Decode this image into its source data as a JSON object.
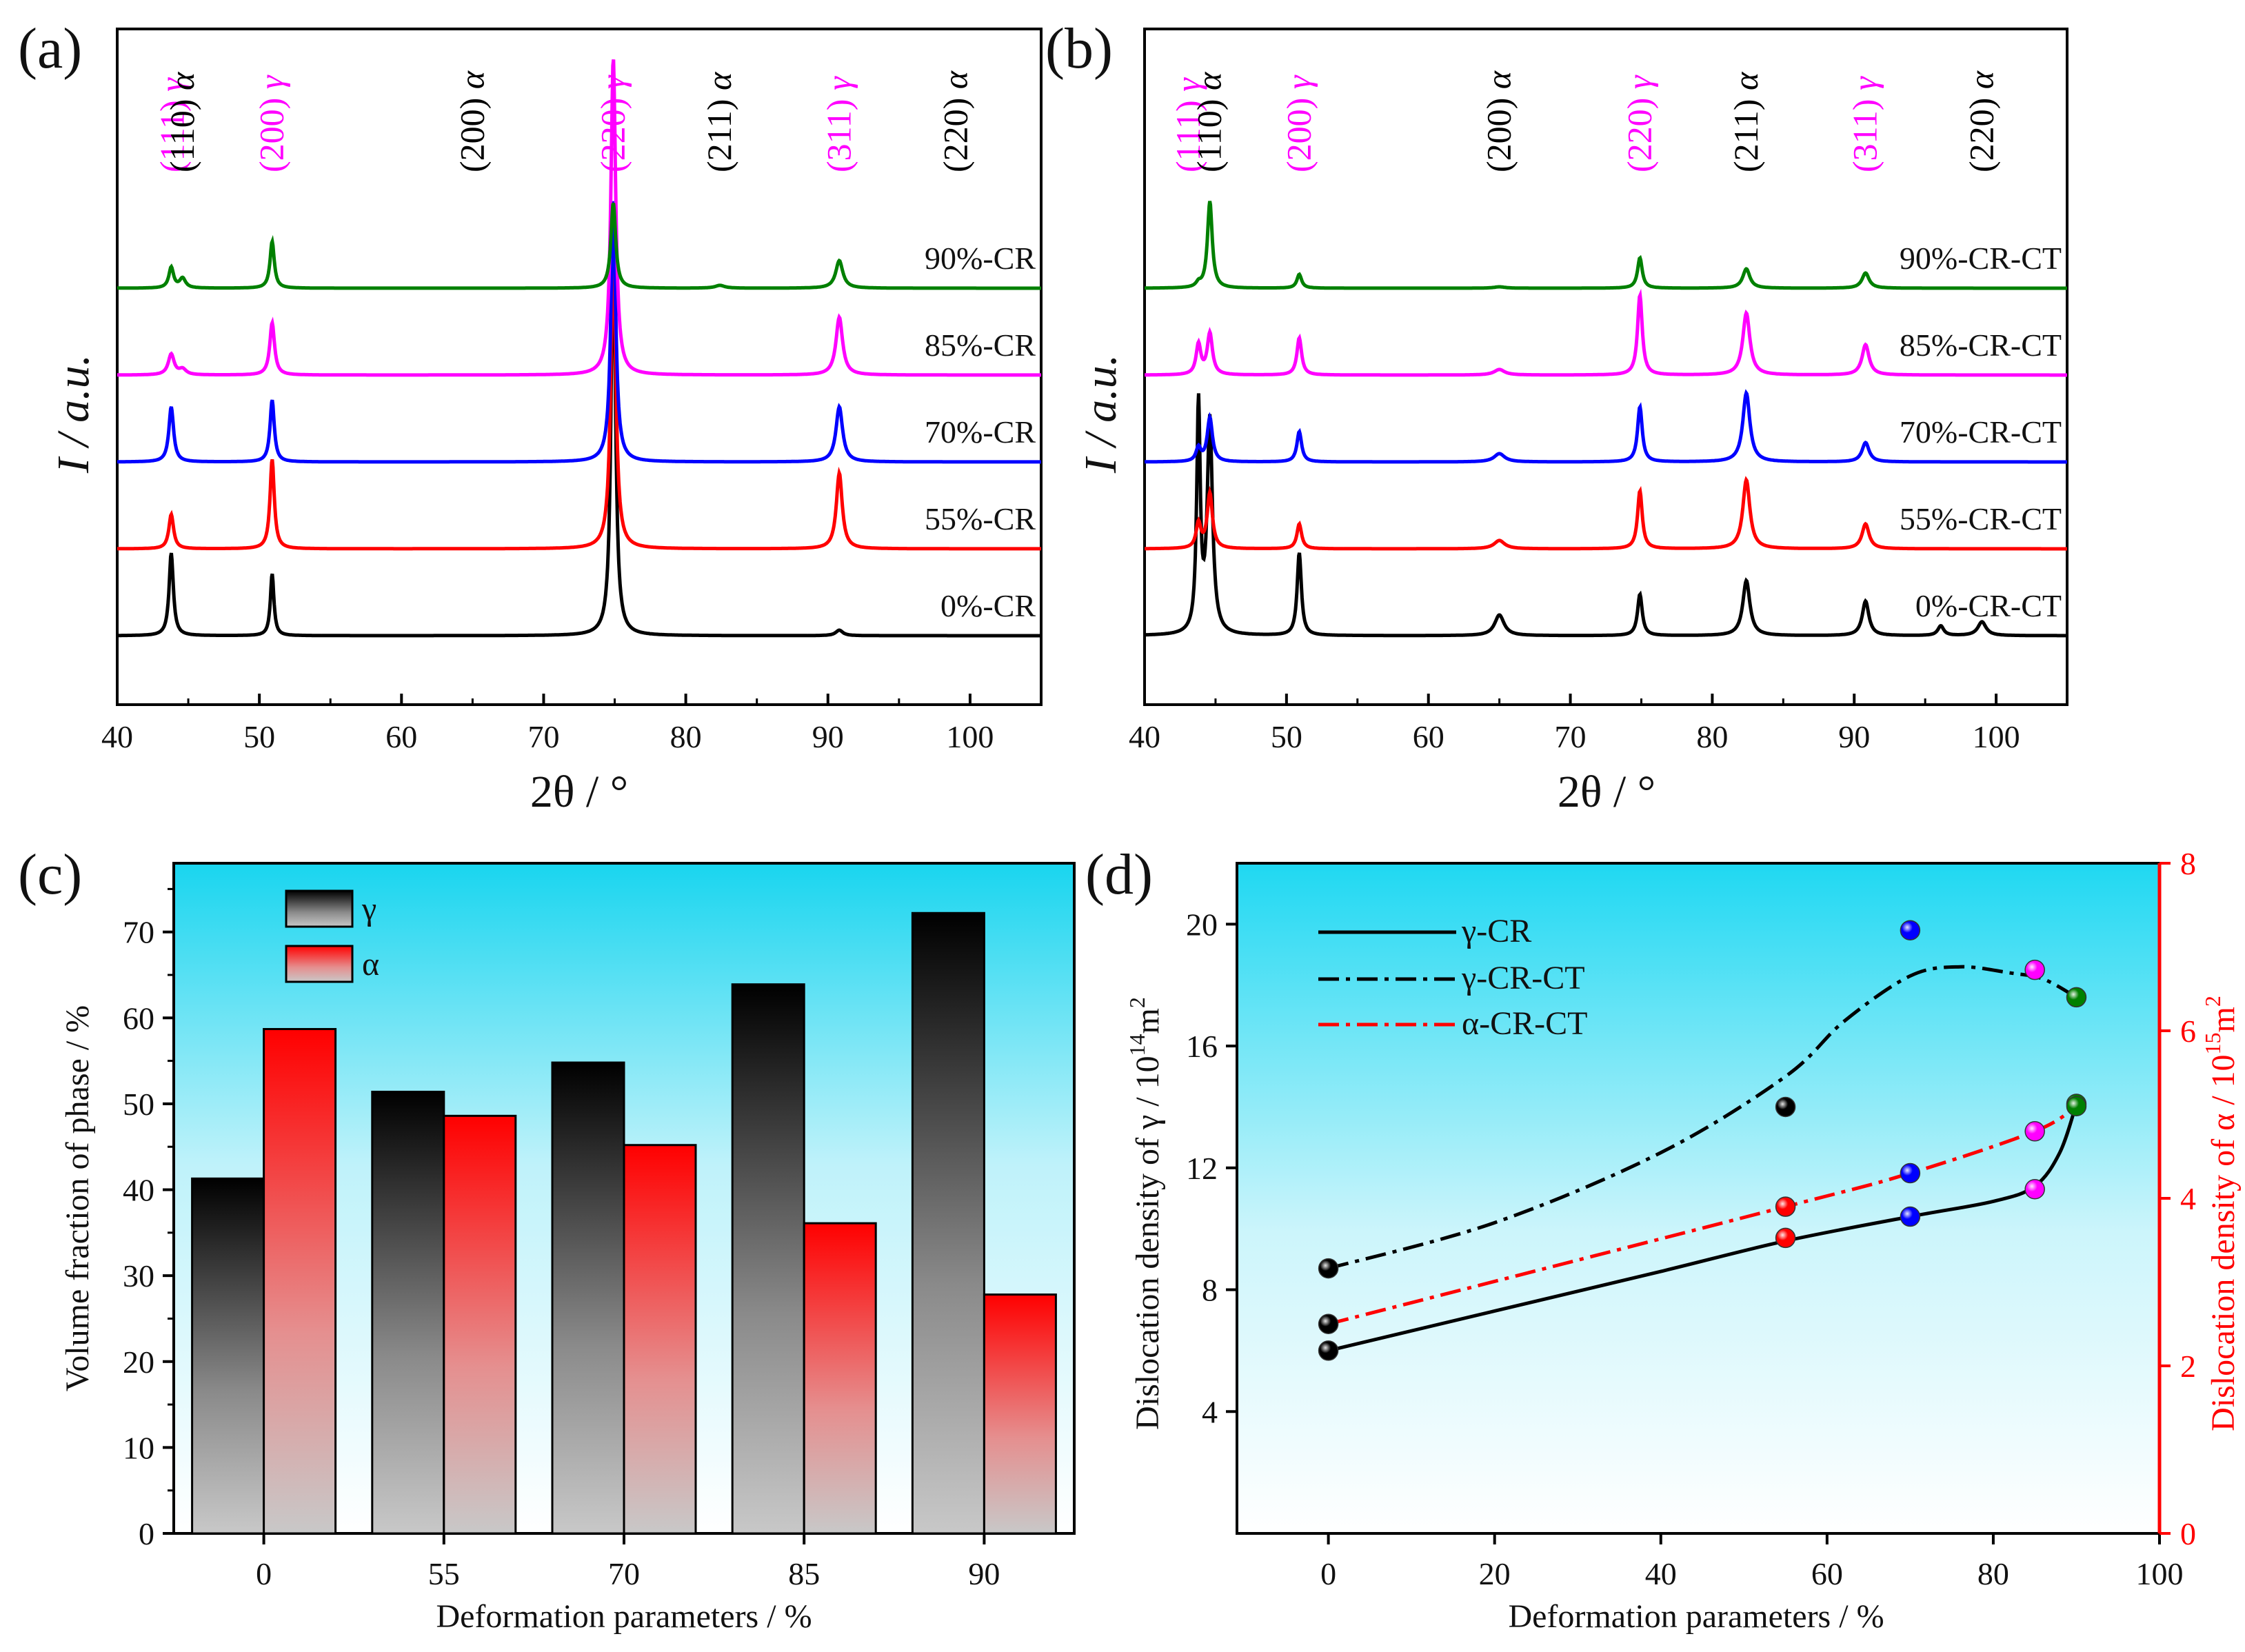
{
  "chart_data": [
    {
      "panel": "(a)",
      "type": "line",
      "xlabel": "2θ / °",
      "ylabel": "I / a.u.",
      "xlim": [
        40,
        105
      ],
      "xticks": [
        40,
        50,
        60,
        70,
        80,
        90,
        100
      ],
      "peak_labels": [
        {
          "hkl": "(111)",
          "phase": "γ",
          "x": 43.9,
          "color": "#ff00ff"
        },
        {
          "hkl": "(110)",
          "phase": "α",
          "x": 44.6,
          "color": "#000000"
        },
        {
          "hkl": "(200)",
          "phase": "γ",
          "x": 50.9,
          "color": "#ff00ff"
        },
        {
          "hkl": "(200)",
          "phase": "α",
          "x": 65.0,
          "color": "#000000"
        },
        {
          "hkl": "(220)",
          "phase": "γ",
          "x": 74.9,
          "color": "#ff00ff"
        },
        {
          "hkl": "(211)",
          "phase": "α",
          "x": 82.4,
          "color": "#000000"
        },
        {
          "hkl": "(311)",
          "phase": "γ",
          "x": 90.8,
          "color": "#ff00ff"
        },
        {
          "hkl": "(220)",
          "phase": "α",
          "x": 99.0,
          "color": "#000000"
        }
      ],
      "series": [
        {
          "name": "0%-CR",
          "color": "#000000",
          "offset": 0,
          "peaks": [
            [
              43.8,
              60,
              0.18
            ],
            [
              50.9,
              45,
              0.15
            ],
            [
              74.9,
              300,
              0.18
            ],
            [
              90.8,
              4,
              0.3
            ]
          ]
        },
        {
          "name": "55%-CR",
          "color": "#ff0000",
          "offset": 63,
          "peaks": [
            [
              43.8,
              25,
              0.2
            ],
            [
              50.9,
              65,
              0.18
            ],
            [
              74.9,
              230,
              0.2
            ],
            [
              90.8,
              55,
              0.25
            ]
          ]
        },
        {
          "name": "70%-CR",
          "color": "#0000ff",
          "offset": 126,
          "peaks": [
            [
              43.8,
              40,
              0.2
            ],
            [
              50.9,
              45,
              0.18
            ],
            [
              74.9,
              190,
              0.2
            ],
            [
              90.8,
              40,
              0.28
            ]
          ]
        },
        {
          "name": "85%-CR",
          "color": "#ff00ff",
          "offset": 189,
          "peaks": [
            [
              43.8,
              15,
              0.25
            ],
            [
              44.6,
              4,
              0.3
            ],
            [
              50.9,
              38,
              0.2
            ],
            [
              74.9,
              230,
              0.2
            ],
            [
              90.8,
              42,
              0.28
            ]
          ]
        },
        {
          "name": "90%-CR",
          "color": "#008000",
          "offset": 252,
          "peaks": [
            [
              43.8,
              15,
              0.2
            ],
            [
              44.6,
              7,
              0.25
            ],
            [
              50.9,
              34,
              0.18
            ],
            [
              74.9,
              62,
              0.2
            ],
            [
              82.4,
              2,
              0.4
            ],
            [
              90.8,
              20,
              0.3
            ]
          ]
        }
      ]
    },
    {
      "panel": "(b)",
      "type": "line",
      "xlabel": "2θ / °",
      "ylabel": "I / a.u.",
      "xlim": [
        40,
        105
      ],
      "xticks": [
        40,
        50,
        60,
        70,
        80,
        90,
        100
      ],
      "peak_labels": [
        {
          "hkl": "(111)",
          "phase": "γ",
          "x": 43.1,
          "color": "#ff00ff"
        },
        {
          "hkl": "(110)",
          "phase": "α",
          "x": 44.6,
          "color": "#000000"
        },
        {
          "hkl": "(200)",
          "phase": "γ",
          "x": 50.9,
          "color": "#ff00ff"
        },
        {
          "hkl": "(200)",
          "phase": "α",
          "x": 65.0,
          "color": "#000000"
        },
        {
          "hkl": "(220)",
          "phase": "γ",
          "x": 74.9,
          "color": "#ff00ff"
        },
        {
          "hkl": "(211)",
          "phase": "α",
          "x": 82.4,
          "color": "#000000"
        },
        {
          "hkl": "(311)",
          "phase": "γ",
          "x": 90.8,
          "color": "#ff00ff"
        },
        {
          "hkl": "(220)",
          "phase": "α",
          "x": 99.0,
          "color": "#000000"
        }
      ],
      "series": [
        {
          "name": "0%-CR-CT",
          "color": "#000000",
          "offset": 0,
          "peaks": [
            [
              43.8,
              165,
              0.15
            ],
            [
              44.6,
              155,
              0.22
            ],
            [
              50.9,
              60,
              0.18
            ],
            [
              65.0,
              15,
              0.4
            ],
            [
              74.9,
              30,
              0.2
            ],
            [
              82.4,
              40,
              0.3
            ],
            [
              90.8,
              25,
              0.28
            ],
            [
              96.1,
              7,
              0.25
            ],
            [
              99.0,
              10,
              0.35
            ]
          ]
        },
        {
          "name": "55%-CR-CT",
          "color": "#ff0000",
          "offset": 63,
          "peaks": [
            [
              43.8,
              18,
              0.2
            ],
            [
              44.6,
              40,
              0.22
            ],
            [
              50.9,
              18,
              0.2
            ],
            [
              65.0,
              6,
              0.45
            ],
            [
              74.9,
              42,
              0.2
            ],
            [
              82.4,
              50,
              0.3
            ],
            [
              90.8,
              18,
              0.3
            ]
          ]
        },
        {
          "name": "70%-CR-CT",
          "color": "#0000ff",
          "offset": 126,
          "peaks": [
            [
              43.8,
              10,
              0.2
            ],
            [
              44.6,
              32,
              0.22
            ],
            [
              50.9,
              22,
              0.2
            ],
            [
              65.0,
              6,
              0.45
            ],
            [
              74.9,
              40,
              0.2
            ],
            [
              82.4,
              50,
              0.3
            ],
            [
              90.8,
              14,
              0.3
            ]
          ]
        },
        {
          "name": "85%-CR-CT",
          "color": "#ff00ff",
          "offset": 189,
          "peaks": [
            [
              43.8,
              22,
              0.2
            ],
            [
              44.6,
              30,
              0.22
            ],
            [
              50.9,
              27,
              0.2
            ],
            [
              65.0,
              4,
              0.45
            ],
            [
              74.9,
              58,
              0.2
            ],
            [
              82.4,
              45,
              0.3
            ],
            [
              90.8,
              22,
              0.3
            ]
          ]
        },
        {
          "name": "90%-CR-CT",
          "color": "#008000",
          "offset": 252,
          "peaks": [
            [
              43.8,
              3,
              0.2
            ],
            [
              44.6,
              63,
              0.2
            ],
            [
              50.9,
              10,
              0.2
            ],
            [
              65.0,
              1,
              0.45
            ],
            [
              74.9,
              22,
              0.2
            ],
            [
              82.4,
              14,
              0.3
            ],
            [
              90.8,
              11,
              0.3
            ]
          ]
        }
      ]
    },
    {
      "panel": "(c)",
      "type": "bar",
      "xlabel": "Deformation  parameters  / %",
      "ylabel": "Volume fraction of  phase / %",
      "ylim": [
        0,
        78
      ],
      "yticks": [
        0,
        10,
        20,
        30,
        40,
        50,
        60,
        70
      ],
      "categories": [
        "0",
        "55",
        "70",
        "85",
        "90"
      ],
      "series": [
        {
          "name": "γ",
          "values": [
            41.3,
            51.4,
            54.8,
            63.9,
            72.2
          ]
        },
        {
          "name": "α",
          "values": [
            58.7,
            48.6,
            45.2,
            36.1,
            27.8
          ]
        }
      ]
    },
    {
      "panel": "(d)",
      "type": "scatter",
      "xlabel": "Deformation  parameters  / %",
      "ylabel_left": "Dislocation density of γ / 10",
      "ylabel_left_sup": "14",
      "ylabel_left_unit": "m",
      "ylabel_left_unit_sup": "2",
      "ylabel_right": "Dislocation density of α / 10",
      "ylabel_right_sup": "15",
      "ylabel_right_unit": "m",
      "ylabel_right_unit_sup": "2",
      "xlim": [
        -11,
        100
      ],
      "ylim_left": [
        0,
        22
      ],
      "ylim_right": [
        0,
        8
      ],
      "xticks": [
        0,
        20,
        40,
        60,
        80,
        100
      ],
      "yticks_left": [
        4,
        8,
        12,
        16,
        20
      ],
      "yticks_right": [
        0,
        2,
        4,
        6,
        8
      ],
      "legend": [
        "γ-CR",
        "γ-CR-CT",
        "α-CR-CT"
      ],
      "series": [
        {
          "name": "γ-CR",
          "axis": "left",
          "style": "solid",
          "color": "#000000",
          "x": [
            0,
            55,
            70,
            85,
            90
          ],
          "y": [
            6.0,
            9.7,
            10.4,
            11.3,
            14.1
          ],
          "point_colors": [
            "#000000",
            "#ff0000",
            "#0000ff",
            "#ff00ff",
            "#008000"
          ]
        },
        {
          "name": "γ-CR-CT",
          "axis": "left",
          "style": "dashdot",
          "color": "#000000",
          "x": [
            0,
            55,
            70,
            85,
            90
          ],
          "y": [
            8.7,
            14.0,
            19.8,
            18.5,
            17.6
          ],
          "point_colors": [
            "#000000",
            "#000000",
            "#0000ff",
            "#ff00ff",
            "#008000"
          ]
        },
        {
          "name": "α-CR-CT",
          "axis": "right",
          "style": "dashdot",
          "color": "#ff0000",
          "x": [
            0,
            55,
            70,
            85,
            90
          ],
          "y": [
            2.5,
            3.9,
            4.3,
            4.8,
            5.1
          ],
          "point_colors": [
            "#000000",
            "#ff0000",
            "#0000ff",
            "#ff00ff",
            "#008000"
          ]
        }
      ],
      "gamma_cr_ct_curve": {
        "x": [
          0,
          20,
          40,
          55,
          62,
          70,
          76,
          82,
          86,
          90
        ],
        "y": [
          8.7,
          10.2,
          12.5,
          15.0,
          16.8,
          18.3,
          18.6,
          18.4,
          18.2,
          17.6
        ]
      },
      "gamma_cr_curve": {
        "x": [
          0,
          20,
          40,
          55,
          70,
          80,
          85,
          88,
          90
        ],
        "y": [
          6.0,
          7.3,
          8.6,
          9.6,
          10.4,
          10.9,
          11.4,
          12.5,
          14.1
        ]
      }
    }
  ]
}
